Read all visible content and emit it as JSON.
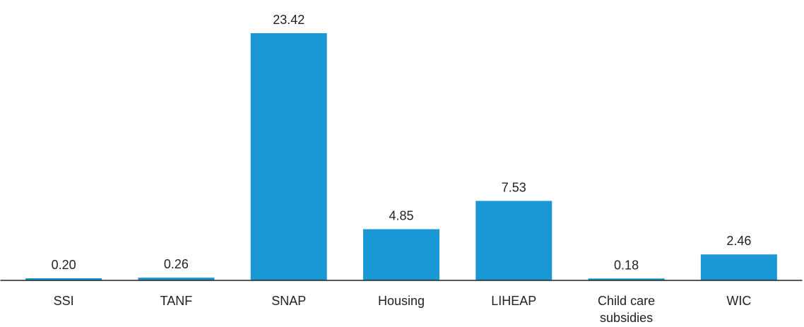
{
  "chart_data": {
    "type": "bar",
    "categories": [
      "SSI",
      "TANF",
      "SNAP",
      "Housing",
      "LIHEAP",
      "Child care subsidies",
      "WIC"
    ],
    "values": [
      0.2,
      0.26,
      23.42,
      4.85,
      7.53,
      0.18,
      2.46
    ],
    "value_labels": [
      "0.20",
      "0.26",
      "23.42",
      "4.85",
      "7.53",
      "0.18",
      "2.46"
    ],
    "color": "#1a98d5"
  }
}
